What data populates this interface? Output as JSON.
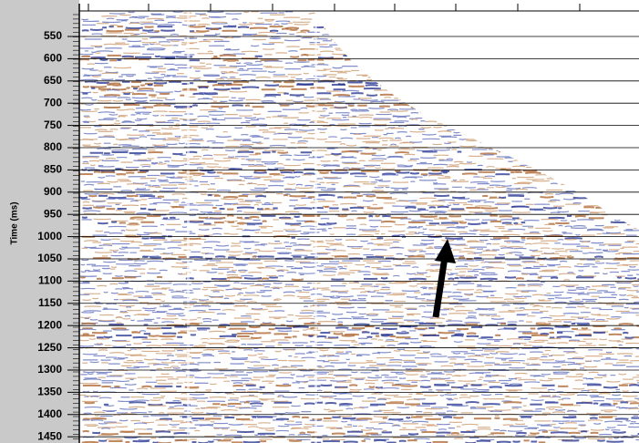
{
  "chart_data": {
    "type": "seismic",
    "ylabel": "Time (ms)",
    "ylim": [
      468,
      1464
    ],
    "yticks": [
      550,
      600,
      650,
      700,
      750,
      800,
      850,
      900,
      950,
      1000,
      1050,
      1100,
      1150,
      1200,
      1250,
      1300,
      1350,
      1400,
      1450
    ],
    "grid": true
  }
}
